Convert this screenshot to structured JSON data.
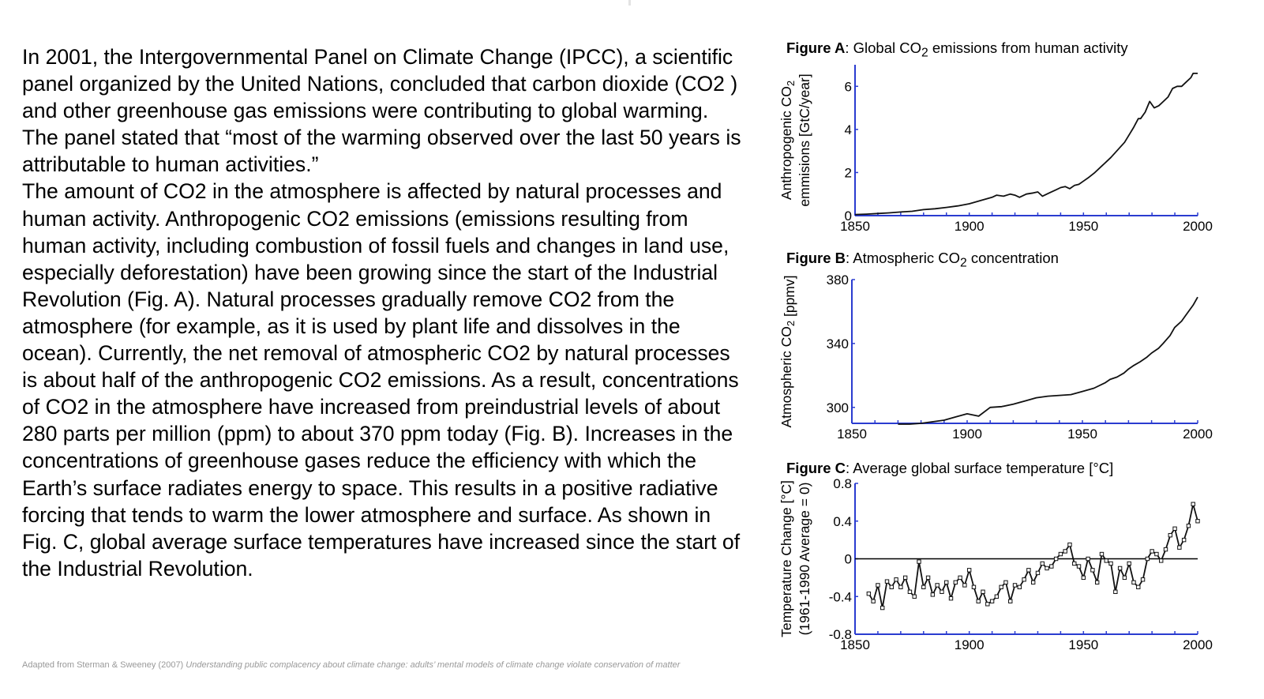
{
  "paragraphs": [
    "In 2001, the Intergovernmental Panel on Climate Change (IPCC), a scientific panel organized by the United Nations, concluded that carbon dioxide (CO2 ) and other greenhouse gas emissions were contributing to global warming. The panel stated that “most of the warming observed over the last 50 years is attributable to human activities.”",
    "The amount of CO2 in the atmosphere is affected by natural processes and human activity. Anthropogenic CO2 emissions (emissions resulting from human activity, including combustion of fossil fuels and changes in land use, especially deforestation) have been growing since the start of the Industrial Revolution (Fig. A). Natural processes gradually remove CO2 from the atmosphere (for example, as it is used by plant life and dissolves in the ocean). Currently, the net removal of atmospheric CO2 by natural processes is about half of the anthropogenic CO2 emissions. As a result, concentrations of CO2 in the atmosphere have increased from preindustrial levels of about 280 parts per million (ppm) to about 370 ppm today (Fig. B). Increases in the concentrations of greenhouse gases reduce the efficiency with which the Earth’s surface radiates energy to space. This results in a positive radiative forcing that tends to warm the lower atmosphere and surface. As shown in Fig. C, global average surface temperatures have increased since the start of the Industrial Revolution."
  ],
  "source": {
    "prefix": "Adapted from Sterman & Sweeney (2007) ",
    "title": "Understanding public complacency about climate change: adults’ mental models of climate change violate conservation of matter"
  },
  "colors": {
    "axis": "#2a3cd0",
    "line": "#111111",
    "zero_line": "#000000"
  },
  "chart_data": [
    {
      "type": "line",
      "label": "Figure A",
      "title": "Global CO2 emissions from human activity",
      "ylabel_line1": "Anthropogenic CO2",
      "ylabel_line2": "emmisions [GtC/year]",
      "xlim": [
        1850,
        2000
      ],
      "ylim": [
        0,
        7
      ],
      "xticks": [
        "1850",
        "1900",
        "1950",
        "2000"
      ],
      "yticks": [
        "0",
        "2",
        "4",
        "6"
      ],
      "x": [
        1850,
        1855,
        1860,
        1865,
        1870,
        1875,
        1880,
        1885,
        1890,
        1895,
        1900,
        1905,
        1910,
        1912,
        1915,
        1918,
        1920,
        1922,
        1925,
        1928,
        1930,
        1932,
        1935,
        1938,
        1940,
        1942,
        1944,
        1946,
        1948,
        1950,
        1952,
        1955,
        1958,
        1960,
        1962,
        1965,
        1968,
        1970,
        1972,
        1974,
        1975,
        1977,
        1979,
        1981,
        1983,
        1985,
        1987,
        1989,
        1991,
        1993,
        1995,
        1997,
        1998,
        2000
      ],
      "y": [
        0.05,
        0.07,
        0.1,
        0.13,
        0.17,
        0.2,
        0.28,
        0.32,
        0.38,
        0.45,
        0.55,
        0.7,
        0.85,
        0.95,
        0.9,
        1.0,
        0.95,
        0.85,
        1.0,
        1.05,
        1.1,
        0.9,
        1.05,
        1.2,
        1.3,
        1.35,
        1.25,
        1.4,
        1.45,
        1.6,
        1.75,
        2.0,
        2.3,
        2.5,
        2.7,
        3.05,
        3.4,
        3.75,
        4.1,
        4.5,
        4.5,
        4.8,
        5.3,
        5.0,
        5.1,
        5.3,
        5.5,
        5.9,
        6.0,
        6.0,
        6.2,
        6.4,
        6.6,
        6.6
      ]
    },
    {
      "type": "line",
      "label": "Figure B",
      "title": "Atmospheric CO2 concentration",
      "ylabel": "Atmospheric CO2 [ppmv]",
      "xlim": [
        1850,
        2000
      ],
      "ylim": [
        290,
        380
      ],
      "xticks": [
        "1850",
        "1900",
        "1950",
        "2000"
      ],
      "yticks": [
        "300",
        "340",
        "380"
      ],
      "x": [
        1870,
        1875,
        1880,
        1885,
        1890,
        1895,
        1900,
        1905,
        1910,
        1915,
        1920,
        1925,
        1930,
        1935,
        1940,
        1945,
        1950,
        1955,
        1960,
        1962,
        1965,
        1968,
        1970,
        1972,
        1975,
        1978,
        1980,
        1983,
        1985,
        1988,
        1990,
        1993,
        1995,
        1998,
        2000
      ],
      "y": [
        289.5,
        289.5,
        290,
        291,
        292,
        294,
        296,
        294.5,
        300,
        300.5,
        302,
        304,
        306,
        307,
        307.5,
        308,
        310,
        312,
        315.5,
        317.5,
        319,
        321.5,
        324,
        326,
        328.5,
        331.5,
        334,
        337,
        340,
        345,
        350,
        354,
        358,
        364,
        369
      ]
    },
    {
      "type": "line",
      "label": "Figure C",
      "title": "Average global surface temperature [°C]",
      "ylabel_line1": "Temperature Change [°C]",
      "ylabel_line2": "(1961-1990 Average = 0)",
      "xlim": [
        1850,
        2000
      ],
      "ylim": [
        -0.8,
        0.8
      ],
      "xticks": [
        "1850",
        "1900",
        "1950",
        "2000"
      ],
      "yticks": [
        "0.8",
        "0.4",
        "0",
        "-0.4",
        "-0.8"
      ],
      "x": [
        1856,
        1858,
        1860,
        1862,
        1864,
        1866,
        1868,
        1870,
        1872,
        1874,
        1876,
        1878,
        1880,
        1882,
        1884,
        1886,
        1888,
        1890,
        1892,
        1894,
        1896,
        1898,
        1900,
        1902,
        1904,
        1906,
        1908,
        1910,
        1912,
        1914,
        1916,
        1918,
        1920,
        1922,
        1924,
        1926,
        1928,
        1930,
        1932,
        1934,
        1936,
        1938,
        1940,
        1942,
        1944,
        1946,
        1948,
        1950,
        1952,
        1954,
        1956,
        1958,
        1960,
        1962,
        1964,
        1966,
        1968,
        1970,
        1972,
        1974,
        1976,
        1978,
        1980,
        1982,
        1984,
        1986,
        1988,
        1990,
        1992,
        1994,
        1996,
        1998,
        2000
      ],
      "y": [
        -0.37,
        -0.45,
        -0.28,
        -0.52,
        -0.24,
        -0.3,
        -0.22,
        -0.3,
        -0.2,
        -0.35,
        -0.4,
        -0.03,
        -0.3,
        -0.2,
        -0.38,
        -0.28,
        -0.35,
        -0.25,
        -0.42,
        -0.25,
        -0.2,
        -0.28,
        -0.12,
        -0.3,
        -0.45,
        -0.35,
        -0.48,
        -0.45,
        -0.4,
        -0.3,
        -0.25,
        -0.45,
        -0.28,
        -0.3,
        -0.22,
        -0.12,
        -0.25,
        -0.15,
        -0.05,
        -0.1,
        -0.08,
        0.0,
        0.05,
        0.08,
        0.15,
        -0.05,
        -0.08,
        -0.2,
        0.0,
        -0.12,
        -0.25,
        0.05,
        -0.02,
        -0.05,
        -0.35,
        -0.1,
        -0.2,
        -0.05,
        -0.25,
        -0.3,
        -0.22,
        0.0,
        0.08,
        0.05,
        -0.02,
        0.1,
        0.25,
        0.32,
        0.12,
        0.2,
        0.35,
        0.58,
        0.4
      ]
    }
  ]
}
